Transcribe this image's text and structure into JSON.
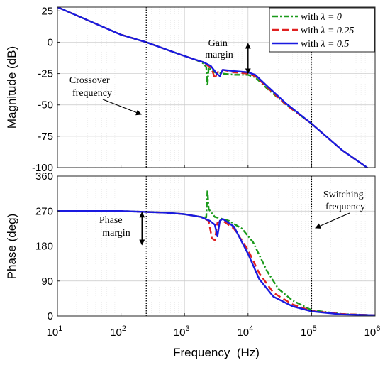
{
  "chart_data": [
    {
      "type": "line",
      "id": "magnitude",
      "xscale": "log",
      "xlim": [
        10,
        1000000
      ],
      "ylim": [
        -100,
        28
      ],
      "ylabel": "Magnitude (dB)",
      "yticks": [
        25,
        0,
        -25,
        -50,
        -75,
        -100
      ],
      "ytick_labels": [
        "25",
        "0",
        "-25",
        "-50",
        "-75",
        "-100"
      ],
      "grid": true,
      "legend": "top-right",
      "series": [
        {
          "name": "with λ = 0",
          "legend_prefix": "with ",
          "legend_math": "λ = 0",
          "color": "#1a9a1a",
          "dash": "dash-dot",
          "points": [
            [
              10,
              28
            ],
            [
              100,
              6
            ],
            [
              250,
              0
            ],
            [
              600,
              -7
            ],
            [
              1000,
              -11
            ],
            [
              1500,
              -14
            ],
            [
              2000,
              -17
            ],
            [
              2200,
              -20
            ],
            [
              2300,
              -35
            ],
            [
              2400,
              -20
            ],
            [
              2700,
              -23
            ],
            [
              3000,
              -24
            ],
            [
              4000,
              -25
            ],
            [
              6000,
              -26
            ],
            [
              10000,
              -26
            ],
            [
              13000,
              -28
            ],
            [
              20000,
              -37
            ],
            [
              40000,
              -50
            ],
            [
              100000,
              -65
            ],
            [
              300000,
              -86
            ],
            [
              800000,
              -101
            ]
          ]
        },
        {
          "name": "with λ = 0.25",
          "legend_prefix": "with ",
          "legend_math": "λ = 0.25",
          "color": "#e02020",
          "dash": "dashed",
          "points": [
            [
              10,
              28
            ],
            [
              100,
              6
            ],
            [
              250,
              0
            ],
            [
              600,
              -7
            ],
            [
              1000,
              -11
            ],
            [
              1500,
              -14
            ],
            [
              2000,
              -16
            ],
            [
              2500,
              -20
            ],
            [
              2800,
              -24
            ],
            [
              3000,
              -29
            ],
            [
              3300,
              -24
            ],
            [
              4000,
              -22
            ],
            [
              6000,
              -24
            ],
            [
              10000,
              -25
            ],
            [
              13000,
              -27
            ],
            [
              20000,
              -36
            ],
            [
              40000,
              -50
            ],
            [
              100000,
              -65
            ],
            [
              300000,
              -86
            ],
            [
              800000,
              -101
            ]
          ]
        },
        {
          "name": "with λ = 0.5",
          "legend_prefix": "with ",
          "legend_math": "λ = 0.5",
          "color": "#1a1ae0",
          "dash": "solid",
          "points": [
            [
              10,
              28
            ],
            [
              100,
              6
            ],
            [
              250,
              0
            ],
            [
              600,
              -7
            ],
            [
              1000,
              -11
            ],
            [
              1500,
              -14
            ],
            [
              2000,
              -16
            ],
            [
              2600,
              -19
            ],
            [
              3200,
              -25
            ],
            [
              3600,
              -27
            ],
            [
              4000,
              -22
            ],
            [
              6000,
              -23
            ],
            [
              10000,
              -24
            ],
            [
              13000,
              -26
            ],
            [
              20000,
              -35
            ],
            [
              40000,
              -49
            ],
            [
              100000,
              -65
            ],
            [
              300000,
              -86
            ],
            [
              800000,
              -101
            ]
          ]
        }
      ],
      "annotations": [
        {
          "id": "gain-margin",
          "lines": [
            "Gain",
            "margin"
          ]
        },
        {
          "id": "crossover",
          "lines": [
            "Crossover",
            "frequency"
          ]
        }
      ]
    },
    {
      "type": "line",
      "id": "phase",
      "xscale": "log",
      "xlim": [
        10,
        1000000
      ],
      "ylim": [
        0,
        360
      ],
      "xlabel": "Frequency  (Hz)",
      "ylabel": "Phase (deg)",
      "xticks": [
        10,
        100,
        1000,
        10000,
        100000,
        1000000
      ],
      "xtick_labels": [
        {
          "base": "10",
          "exp": "1"
        },
        {
          "base": "10",
          "exp": "2"
        },
        {
          "base": "10",
          "exp": "3"
        },
        {
          "base": "10",
          "exp": "4"
        },
        {
          "base": "10",
          "exp": "5"
        },
        {
          "base": "10",
          "exp": "6"
        }
      ],
      "yticks": [
        360,
        270,
        180,
        90,
        0
      ],
      "ytick_labels": [
        "360",
        "270",
        "180",
        "90",
        "0"
      ],
      "grid": true,
      "series": [
        {
          "name": "with λ = 0",
          "color": "#1a9a1a",
          "dash": "dash-dot",
          "points": [
            [
              10,
              270
            ],
            [
              100,
              270
            ],
            [
              500,
              266
            ],
            [
              1000,
              262
            ],
            [
              1800,
              255
            ],
            [
              2200,
              254
            ],
            [
              2300,
              325
            ],
            [
              2400,
              275
            ],
            [
              3000,
              255
            ],
            [
              5000,
              245
            ],
            [
              8000,
              225
            ],
            [
              12000,
              190
            ],
            [
              20000,
              115
            ],
            [
              30000,
              70
            ],
            [
              50000,
              40
            ],
            [
              100000,
              15
            ],
            [
              300000,
              5
            ],
            [
              1000000,
              2
            ]
          ]
        },
        {
          "name": "with λ = 0.25",
          "color": "#e02020",
          "dash": "dashed",
          "points": [
            [
              10,
              270
            ],
            [
              100,
              270
            ],
            [
              500,
              266
            ],
            [
              1000,
              262
            ],
            [
              1800,
              255
            ],
            [
              2400,
              245
            ],
            [
              2700,
              200
            ],
            [
              3000,
              195
            ],
            [
              3300,
              240
            ],
            [
              4000,
              245
            ],
            [
              6000,
              225
            ],
            [
              10000,
              170
            ],
            [
              15000,
              110
            ],
            [
              25000,
              60
            ],
            [
              50000,
              30
            ],
            [
              100000,
              13
            ],
            [
              300000,
              5
            ],
            [
              1000000,
              2
            ]
          ]
        },
        {
          "name": "with λ = 0.5",
          "color": "#1a1ae0",
          "dash": "solid",
          "points": [
            [
              10,
              270
            ],
            [
              100,
              270
            ],
            [
              500,
              266
            ],
            [
              1000,
              262
            ],
            [
              1800,
              255
            ],
            [
              2500,
              245
            ],
            [
              3000,
              235
            ],
            [
              3300,
              205
            ],
            [
              3600,
              245
            ],
            [
              4000,
              250
            ],
            [
              6000,
              230
            ],
            [
              10000,
              160
            ],
            [
              15000,
              95
            ],
            [
              25000,
              50
            ],
            [
              50000,
              25
            ],
            [
              100000,
              12
            ],
            [
              300000,
              4
            ],
            [
              1000000,
              2
            ]
          ]
        }
      ],
      "annotations": [
        {
          "id": "phase-margin",
          "lines": [
            "Phase",
            "margin"
          ]
        },
        {
          "id": "switching",
          "lines": [
            "Switching",
            "frequency"
          ]
        }
      ]
    }
  ],
  "markers": {
    "crossover_frequency_hz": 250,
    "switching_frequency_hz": 100000,
    "gain_margin_db": [
      -26,
      0
    ],
    "gain_margin_freq_hz": 10000,
    "phase_margin_deg": [
      180,
      270
    ],
    "phase_margin_freq_hz": 250
  }
}
